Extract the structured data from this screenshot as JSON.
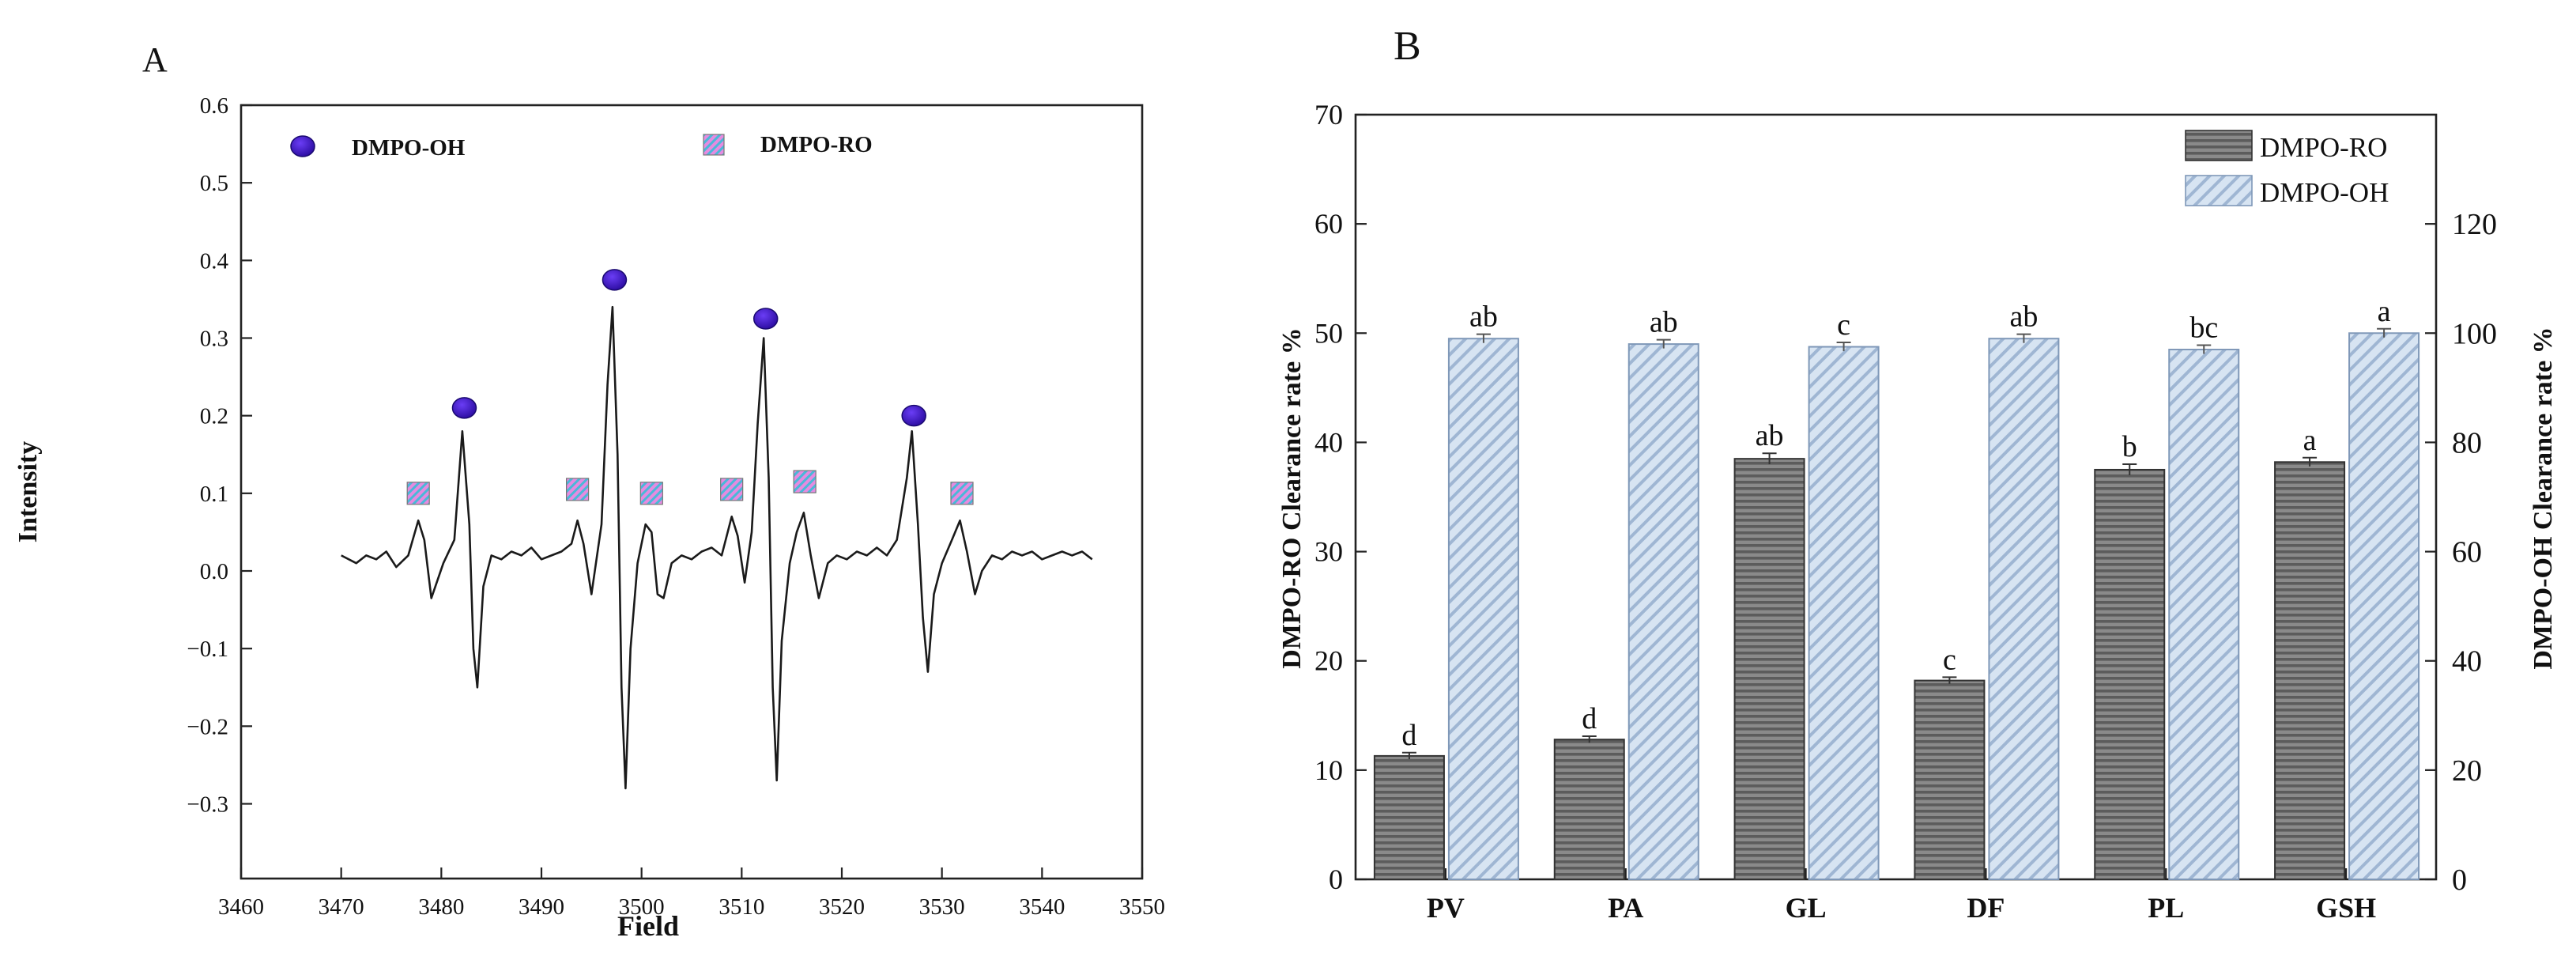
{
  "chart_data": [
    {
      "type": "line",
      "panel_label": "A",
      "xlabel": "Field",
      "ylabel": "Intensity",
      "xlim": [
        3460,
        3550
      ],
      "ylim": [
        -0.35,
        0.6
      ],
      "x_ticks": [
        3460,
        3470,
        3480,
        3490,
        3500,
        3510,
        3520,
        3530,
        3540,
        3550
      ],
      "y_ticks": [
        0.6,
        0.5,
        0.4,
        0.3,
        0.2,
        0.1,
        0.0,
        -0.1,
        -0.2,
        -0.3
      ],
      "y_tick_labels": [
        "0.6",
        "0.5",
        "0.4",
        "0.3",
        "0.2",
        "0.1",
        "0.0",
        "−0.1",
        "−0.2",
        "−0.3"
      ],
      "legend": [
        {
          "name": "DMPO-OH",
          "marker": "circle",
          "color": "#3b16c9"
        },
        {
          "name": "DMPO-RO",
          "marker": "square",
          "color": "#d86fd0"
        }
      ],
      "spectrum": [
        [
          3470.0,
          0.02
        ],
        [
          3471.5,
          0.01
        ],
        [
          3472.5,
          0.02
        ],
        [
          3473.5,
          0.015
        ],
        [
          3474.5,
          0.025
        ],
        [
          3475.5,
          0.005
        ],
        [
          3476.7,
          0.02
        ],
        [
          3477.7,
          0.065
        ],
        [
          3478.3,
          0.04
        ],
        [
          3479.0,
          -0.035
        ],
        [
          3480.2,
          0.01
        ],
        [
          3481.3,
          0.04
        ],
        [
          3482.1,
          0.18
        ],
        [
          3482.8,
          0.06
        ],
        [
          3483.2,
          -0.1
        ],
        [
          3483.6,
          -0.15
        ],
        [
          3484.2,
          -0.02
        ],
        [
          3485.0,
          0.02
        ],
        [
          3486.0,
          0.015
        ],
        [
          3487.0,
          0.025
        ],
        [
          3488.0,
          0.02
        ],
        [
          3489.0,
          0.03
        ],
        [
          3490.0,
          0.015
        ],
        [
          3491.0,
          0.02
        ],
        [
          3492.0,
          0.025
        ],
        [
          3493.0,
          0.035
        ],
        [
          3493.6,
          0.065
        ],
        [
          3494.2,
          0.035
        ],
        [
          3495.0,
          -0.03
        ],
        [
          3496.0,
          0.06
        ],
        [
          3496.6,
          0.24
        ],
        [
          3497.1,
          0.34
        ],
        [
          3497.6,
          0.15
        ],
        [
          3498.0,
          -0.15
        ],
        [
          3498.4,
          -0.28
        ],
        [
          3498.9,
          -0.1
        ],
        [
          3499.6,
          0.01
        ],
        [
          3500.4,
          0.06
        ],
        [
          3501.0,
          0.05
        ],
        [
          3501.6,
          -0.03
        ],
        [
          3502.2,
          -0.035
        ],
        [
          3503.0,
          0.01
        ],
        [
          3504.0,
          0.02
        ],
        [
          3505.0,
          0.015
        ],
        [
          3506.0,
          0.025
        ],
        [
          3507.0,
          0.03
        ],
        [
          3508.0,
          0.02
        ],
        [
          3509.0,
          0.07
        ],
        [
          3509.6,
          0.045
        ],
        [
          3510.3,
          -0.015
        ],
        [
          3511.0,
          0.05
        ],
        [
          3511.6,
          0.19
        ],
        [
          3512.2,
          0.3
        ],
        [
          3512.7,
          0.12
        ],
        [
          3513.1,
          -0.15
        ],
        [
          3513.5,
          -0.27
        ],
        [
          3514.0,
          -0.09
        ],
        [
          3514.8,
          0.01
        ],
        [
          3515.5,
          0.05
        ],
        [
          3516.2,
          0.075
        ],
        [
          3516.9,
          0.02
        ],
        [
          3517.7,
          -0.035
        ],
        [
          3518.6,
          0.01
        ],
        [
          3519.5,
          0.02
        ],
        [
          3520.5,
          0.015
        ],
        [
          3521.5,
          0.025
        ],
        [
          3522.5,
          0.02
        ],
        [
          3523.5,
          0.03
        ],
        [
          3524.5,
          0.02
        ],
        [
          3525.5,
          0.04
        ],
        [
          3526.5,
          0.12
        ],
        [
          3527.0,
          0.18
        ],
        [
          3527.6,
          0.06
        ],
        [
          3528.1,
          -0.06
        ],
        [
          3528.6,
          -0.13
        ],
        [
          3529.2,
          -0.03
        ],
        [
          3530.0,
          0.01
        ],
        [
          3531.0,
          0.04
        ],
        [
          3531.8,
          0.065
        ],
        [
          3532.5,
          0.025
        ],
        [
          3533.3,
          -0.03
        ],
        [
          3534.0,
          0.0
        ],
        [
          3535.0,
          0.02
        ],
        [
          3536.0,
          0.015
        ],
        [
          3537.0,
          0.025
        ],
        [
          3538.0,
          0.02
        ],
        [
          3539.0,
          0.025
        ],
        [
          3540.0,
          0.015
        ],
        [
          3541.0,
          0.02
        ],
        [
          3542.0,
          0.025
        ],
        [
          3543.0,
          0.02
        ],
        [
          3544.0,
          0.025
        ],
        [
          3545.0,
          0.015
        ]
      ],
      "oh_markers": [
        [
          3482.3,
          0.21
        ],
        [
          3497.3,
          0.375
        ],
        [
          3512.4,
          0.325
        ],
        [
          3527.2,
          0.2
        ]
      ],
      "ro_markers": [
        [
          3477.7,
          0.1
        ],
        [
          3493.6,
          0.105
        ],
        [
          3501.0,
          0.1
        ],
        [
          3509.0,
          0.105
        ],
        [
          3516.3,
          0.115
        ],
        [
          3532.0,
          0.1
        ]
      ]
    },
    {
      "type": "bar",
      "panel_label": "B",
      "categories": [
        "PV",
        "PA",
        "GL",
        "DF",
        "PL",
        "GSH"
      ],
      "ylabel": "DMPO-RO  Clearance rate %",
      "y2label": "DMPO-OH  Clearance rate %",
      "ylim": [
        0,
        70
      ],
      "y2lim": [
        0,
        140
      ],
      "y_ticks": [
        0,
        10,
        20,
        30,
        40,
        50,
        60,
        70
      ],
      "y2_ticks": [
        0,
        20,
        40,
        60,
        80,
        100,
        120
      ],
      "series": [
        {
          "name": "DMPO-RO",
          "axis": "left",
          "color": "#7d7d7d",
          "values": [
            11.3,
            12.8,
            38.5,
            18.2,
            37.5,
            38.2
          ],
          "errors": [
            0.3,
            0.3,
            0.5,
            0.3,
            0.5,
            0.4
          ],
          "labels": [
            "d",
            "d",
            "ab",
            "c",
            "b",
            "a"
          ]
        },
        {
          "name": "DMPO-OH",
          "axis": "right",
          "color": "#c9d9ec",
          "values": [
            99.0,
            98.0,
            97.5,
            99.0,
            97.0,
            100.0
          ],
          "errors": [
            0.8,
            0.8,
            0.8,
            0.8,
            0.8,
            0.8
          ],
          "labels": [
            "ab",
            "ab",
            "c",
            "ab",
            "bc",
            "a"
          ]
        }
      ]
    }
  ]
}
